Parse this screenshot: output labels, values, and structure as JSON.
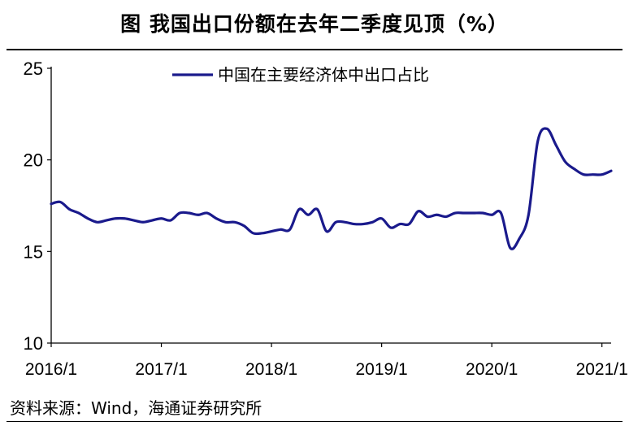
{
  "figure": {
    "title": "图  我国出口份额在去年二季度见顶（%）",
    "source": "资料来源：Wind，海通证券研究所"
  },
  "chart_data": {
    "type": "line",
    "title": "图  我国出口份额在去年二季度见顶（%）",
    "xlabel": "",
    "ylabel": "",
    "ylim": [
      10,
      25
    ],
    "yticks": [
      "10",
      "15",
      "20",
      "25"
    ],
    "xticks": [
      "2016/1",
      "2017/1",
      "2018/1",
      "2019/1",
      "2020/1",
      "2021/1"
    ],
    "legend_position": "top-center",
    "grid": false,
    "series": [
      {
        "name": "中国在主要经济体中出口占比",
        "color": "#1a1a8c",
        "points": [
          [
            "2016/1",
            17.6
          ],
          [
            "2016/2",
            17.7
          ],
          [
            "2016/3",
            17.3
          ],
          [
            "2016/4",
            17.1
          ],
          [
            "2016/5",
            16.8
          ],
          [
            "2016/6",
            16.6
          ],
          [
            "2016/7",
            16.7
          ],
          [
            "2016/8",
            16.8
          ],
          [
            "2016/9",
            16.8
          ],
          [
            "2016/10",
            16.7
          ],
          [
            "2016/11",
            16.6
          ],
          [
            "2016/12",
            16.7
          ],
          [
            "2017/1",
            16.8
          ],
          [
            "2017/2",
            16.7
          ],
          [
            "2017/3",
            17.1
          ],
          [
            "2017/4",
            17.1
          ],
          [
            "2017/5",
            17.0
          ],
          [
            "2017/6",
            17.1
          ],
          [
            "2017/7",
            16.8
          ],
          [
            "2017/8",
            16.6
          ],
          [
            "2017/9",
            16.6
          ],
          [
            "2017/10",
            16.4
          ],
          [
            "2017/11",
            16.0
          ],
          [
            "2017/12",
            16.0
          ],
          [
            "2018/1",
            16.1
          ],
          [
            "2018/2",
            16.2
          ],
          [
            "2018/3",
            16.2
          ],
          [
            "2018/4",
            17.3
          ],
          [
            "2018/5",
            17.0
          ],
          [
            "2018/6",
            17.3
          ],
          [
            "2018/7",
            16.1
          ],
          [
            "2018/8",
            16.6
          ],
          [
            "2018/9",
            16.6
          ],
          [
            "2018/10",
            16.5
          ],
          [
            "2018/11",
            16.5
          ],
          [
            "2018/12",
            16.6
          ],
          [
            "2019/1",
            16.8
          ],
          [
            "2019/2",
            16.3
          ],
          [
            "2019/3",
            16.5
          ],
          [
            "2019/4",
            16.5
          ],
          [
            "2019/5",
            17.2
          ],
          [
            "2019/6",
            16.9
          ],
          [
            "2019/7",
            17.0
          ],
          [
            "2019/8",
            16.9
          ],
          [
            "2019/9",
            17.1
          ],
          [
            "2019/10",
            17.1
          ],
          [
            "2019/11",
            17.1
          ],
          [
            "2019/12",
            17.1
          ],
          [
            "2020/1",
            17.0
          ],
          [
            "2020/2",
            17.1
          ],
          [
            "2020/3",
            15.2
          ],
          [
            "2020/4",
            15.7
          ],
          [
            "2020/5",
            17.0
          ],
          [
            "2020/6",
            21.0
          ],
          [
            "2020/7",
            21.7
          ],
          [
            "2020/8",
            20.8
          ],
          [
            "2020/9",
            19.9
          ],
          [
            "2020/10",
            19.5
          ],
          [
            "2020/11",
            19.2
          ],
          [
            "2020/12",
            19.2
          ],
          [
            "2021/1",
            19.2
          ],
          [
            "2021/2",
            19.4
          ]
        ]
      }
    ]
  }
}
